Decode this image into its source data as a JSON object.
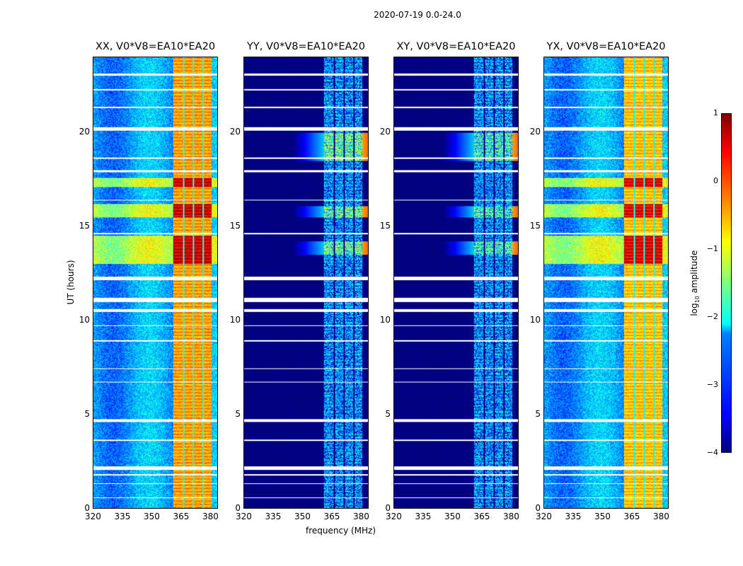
{
  "chart_data": {
    "type": "heatmap",
    "title": "2020-07-19 0.0-24.0",
    "xlabel": "frequency (MHz)",
    "ylabel": "UT (hours)",
    "xlim": [
      320,
      384
    ],
    "ylim": [
      0,
      24
    ],
    "xticks": [
      "320",
      "335",
      "350",
      "365",
      "380"
    ],
    "yticks": [
      "0",
      "5",
      "10",
      "15",
      "20"
    ],
    "xtick_values": [
      320,
      335,
      350,
      365,
      380
    ],
    "ytick_values": [
      0,
      5,
      10,
      15,
      20
    ],
    "colorbar": {
      "label": "log10 amplitude",
      "label_base": "log",
      "label_sub": "10",
      "label_rest": " amplitude",
      "range": [
        -4,
        1
      ],
      "ticks": [
        "1",
        "0",
        "−1",
        "−2",
        "−3",
        "−4"
      ],
      "tick_values": [
        1,
        0,
        -1,
        -2,
        -3,
        -4
      ],
      "colormap": "jet"
    },
    "signal_band_mhz": [
      361,
      381
    ],
    "subband_edges_mhz": [
      366.5,
      371.5,
      376.5
    ],
    "flagged_hours": [
      [
        23.05,
        23.15
      ],
      [
        22.25,
        22.32
      ],
      [
        21.3,
        21.4
      ],
      [
        20.1,
        20.3
      ],
      [
        18.6,
        18.7
      ],
      [
        17.9,
        18.0
      ],
      [
        16.4,
        16.45
      ],
      [
        14.6,
        14.65
      ],
      [
        12.15,
        12.35
      ],
      [
        11.0,
        11.2
      ],
      [
        10.45,
        10.6
      ],
      [
        9.7,
        9.75
      ],
      [
        8.9,
        8.95
      ],
      [
        7.4,
        7.45
      ],
      [
        6.7,
        6.75
      ],
      [
        4.6,
        4.75
      ],
      [
        3.6,
        3.65
      ],
      [
        2.05,
        2.25
      ],
      [
        1.75,
        1.82
      ],
      [
        1.3,
        1.35
      ],
      [
        0.55,
        0.6
      ]
    ],
    "panels": [
      {
        "title": "XX, V0*V8=EA10*EA20",
        "background_log_amp": -2.6,
        "band_log_amp": -0.4,
        "burst_hours": [
          [
            13,
            14.5
          ],
          [
            15.5,
            16.2
          ],
          [
            17.1,
            17.6
          ]
        ],
        "burst_log_amp": 0.6
      },
      {
        "title": "YY, V0*V8=EA10*EA20",
        "background_log_amp": -4,
        "band_log_amp": -2.4,
        "burst_hours": [
          [
            13.5,
            14.2
          ],
          [
            15.5,
            16.1
          ],
          [
            18.5,
            20
          ]
        ],
        "burst_log_amp": -1.4
      },
      {
        "title": "XY, V0*V8=EA10*EA20",
        "background_log_amp": -4,
        "band_log_amp": -2.4,
        "burst_hours": [
          [
            13.5,
            14.2
          ],
          [
            15.5,
            16.1
          ],
          [
            18.5,
            20
          ]
        ],
        "burst_log_amp": -1.6
      },
      {
        "title": "YX, V0*V8=EA10*EA20",
        "background_log_amp": -2.6,
        "band_log_amp": -0.6,
        "burst_hours": [
          [
            13,
            14.5
          ],
          [
            15.5,
            16.2
          ],
          [
            17.1,
            17.6
          ]
        ],
        "burst_log_amp": 0.5
      }
    ]
  }
}
